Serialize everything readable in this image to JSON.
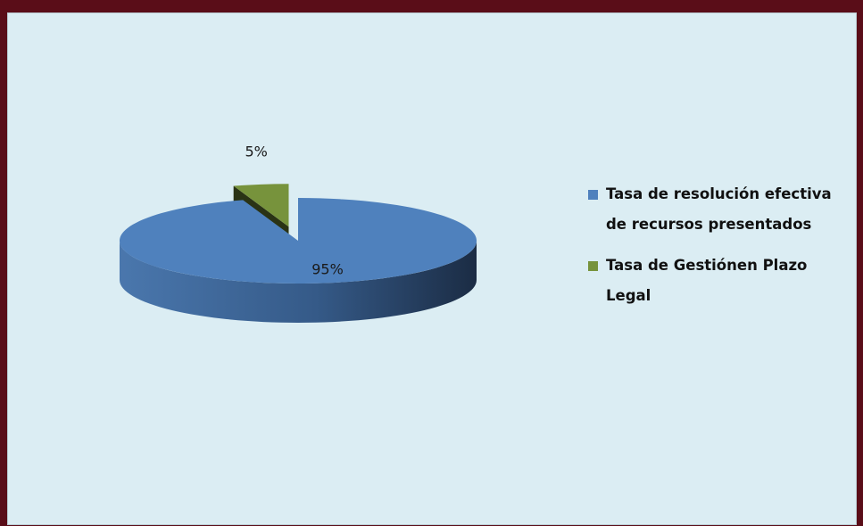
{
  "chart_data": {
    "type": "pie",
    "categories": [
      "Tasa de resolución efectiva de recursos presentados",
      "Tasa de Gestiónen Plazo Legal"
    ],
    "values": [
      95,
      5
    ],
    "value_labels": [
      "95%",
      "5%"
    ],
    "colors": [
      "#4f81bd",
      "#77933c"
    ],
    "legend": "right"
  }
}
